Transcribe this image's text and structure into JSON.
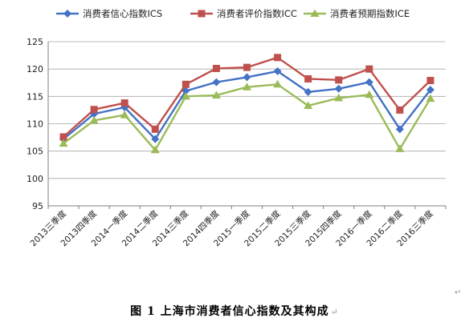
{
  "caption": "图 1 上海市消费者信心指数及其构成",
  "paragraph_mark": "↵",
  "chart_data": {
    "type": "line",
    "title": "",
    "xlabel": "",
    "ylabel": "",
    "ylim": [
      95,
      125
    ],
    "yticks": [
      95,
      100,
      105,
      110,
      115,
      120,
      125
    ],
    "grid": true,
    "legend": "top",
    "categories": [
      "2013三季度",
      "2013四季度",
      "2014一季度",
      "2014二季度",
      "2014三季度",
      "2014四季度",
      "2015一季度",
      "2015二季度",
      "2015三季度",
      "2015四季度",
      "2016一季度",
      "2016二季度",
      "2016三季度"
    ],
    "series": [
      {
        "name": "消费者信心指数ICS",
        "color": "#4472c4",
        "marker": "diamond",
        "values": [
          107.2,
          111.8,
          113.0,
          107.2,
          116.0,
          117.6,
          118.5,
          119.6,
          115.8,
          116.4,
          117.6,
          109.0,
          116.2
        ]
      },
      {
        "name": "消费者评价指数ICC",
        "color": "#c0504d",
        "marker": "square",
        "values": [
          107.6,
          112.6,
          113.8,
          109.0,
          117.2,
          120.1,
          120.3,
          122.1,
          118.2,
          118.0,
          120.0,
          112.5,
          117.9
        ]
      },
      {
        "name": "消费者预期指数ICE",
        "color": "#9bbb59",
        "marker": "triangle",
        "values": [
          106.4,
          110.6,
          111.6,
          105.2,
          115.0,
          115.2,
          116.7,
          117.2,
          113.3,
          114.7,
          115.3,
          105.4,
          114.6
        ]
      }
    ]
  }
}
